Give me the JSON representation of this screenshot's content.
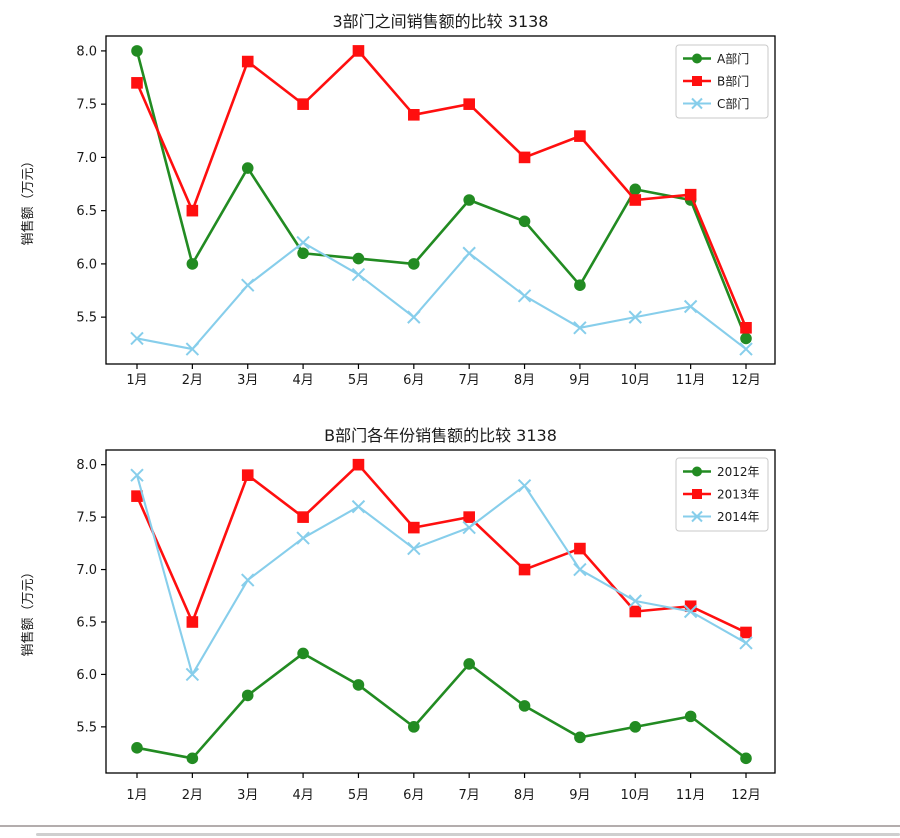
{
  "figure": {
    "background": "#ffffff",
    "text_color": "#1a1a1a",
    "axis_color": "#000000"
  },
  "footer": {
    "divider_color": "#b3adad",
    "scrollbar_color": "#cfcfcf"
  },
  "chart_data": [
    {
      "type": "line",
      "title": "3部门之间销售额的比较  3138",
      "ylabel": "销售额（万元）",
      "xlabel": "",
      "categories": [
        "1月",
        "2月",
        "3月",
        "4月",
        "5月",
        "6月",
        "7月",
        "8月",
        "9月",
        "10月",
        "11月",
        "12月"
      ],
      "ytick_labels": [
        "8.0",
        "7.5",
        "7.0",
        "6.5",
        "6.0",
        "5.5"
      ],
      "ylim": [
        5.06,
        8.14
      ],
      "grid": false,
      "legend_position": "upper right",
      "series": [
        {
          "name": "A部门",
          "color": "#228B22",
          "marker": "circle",
          "values": [
            8.0,
            6.0,
            6.9,
            6.1,
            6.05,
            6.0,
            6.6,
            6.4,
            5.8,
            6.7,
            6.6,
            5.3
          ]
        },
        {
          "name": "B部门",
          "color": "#FF0F0F",
          "marker": "square",
          "values": [
            7.7,
            6.5,
            7.9,
            7.5,
            8.0,
            7.4,
            7.5,
            7.0,
            7.2,
            6.6,
            6.65,
            5.4
          ]
        },
        {
          "name": "C部门",
          "color": "#87CEEB",
          "marker": "x",
          "values": [
            5.3,
            5.2,
            5.8,
            6.2,
            5.9,
            5.5,
            6.1,
            5.7,
            5.4,
            5.5,
            5.6,
            5.2
          ]
        }
      ]
    },
    {
      "type": "line",
      "title": "B部门各年份销售额的比较  3138",
      "ylabel": "销售额（万元）",
      "xlabel": "",
      "categories": [
        "1月",
        "2月",
        "3月",
        "4月",
        "5月",
        "6月",
        "7月",
        "8月",
        "9月",
        "10月",
        "11月",
        "12月"
      ],
      "ytick_labels": [
        "8.0",
        "7.5",
        "7.0",
        "6.5",
        "6.0",
        "5.5"
      ],
      "ylim": [
        5.06,
        8.14
      ],
      "grid": false,
      "legend_position": "upper right",
      "series": [
        {
          "name": "2012年",
          "color": "#228B22",
          "marker": "circle",
          "values": [
            5.3,
            5.2,
            5.8,
            6.2,
            5.9,
            5.5,
            6.1,
            5.7,
            5.4,
            5.5,
            5.6,
            5.2
          ]
        },
        {
          "name": "2013年",
          "color": "#FF0F0F",
          "marker": "square",
          "values": [
            7.7,
            6.5,
            7.9,
            7.5,
            8.0,
            7.4,
            7.5,
            7.0,
            7.2,
            6.6,
            6.65,
            6.4
          ]
        },
        {
          "name": "2014年",
          "color": "#87CEEB",
          "marker": "x",
          "values": [
            7.9,
            6.0,
            6.9,
            7.3,
            7.6,
            7.2,
            7.4,
            7.8,
            7.0,
            6.7,
            6.6,
            6.3
          ]
        }
      ]
    }
  ]
}
